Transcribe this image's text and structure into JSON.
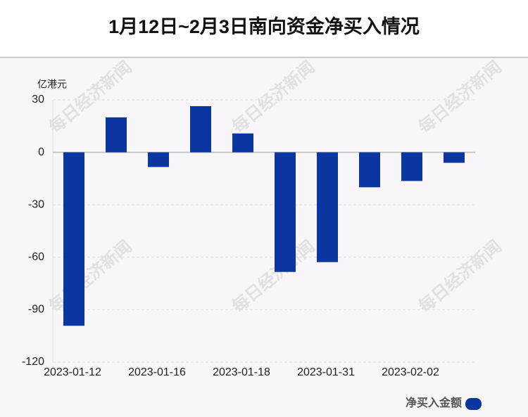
{
  "chart_data": {
    "type": "bar",
    "title": "1月12日~2月3日南向资金净买入情况",
    "y_label": "亿港元",
    "watermark": "每日经济新闻",
    "categories": [
      "2023-01-12",
      null,
      "2023-01-16",
      null,
      "2023-01-18",
      null,
      "2023-01-31",
      null,
      "2023-02-02",
      null
    ],
    "series": [
      {
        "name": "净买入金额",
        "color": "#0b36a0",
        "values": [
          -99.2,
          20,
          -8.4,
          26.4,
          10.8,
          -68.4,
          -62.8,
          -20,
          -16.4,
          -6
        ]
      }
    ],
    "ylim": [
      -120,
      30
    ],
    "yticks": [
      -120,
      -90,
      -60,
      -30,
      0,
      30
    ],
    "grid": true
  }
}
